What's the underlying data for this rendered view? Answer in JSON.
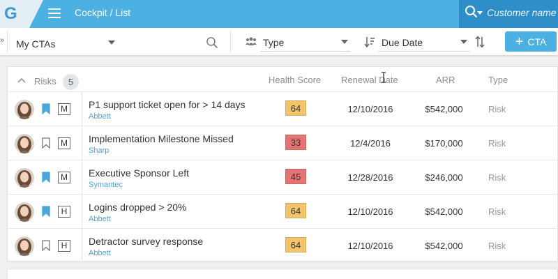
{
  "app": {
    "logo_letter": "G",
    "breadcrumb": "Cockpit / List",
    "search_placeholder": "Customer name",
    "search_icon": "search-icon"
  },
  "toolbar": {
    "view_select": "My CTAs",
    "type_select": "Type",
    "sort_select": "Due Date",
    "cta_button_label": "CTA",
    "cta_button_icon": "plus-icon"
  },
  "section": {
    "title": "Risks",
    "count": "5",
    "columns": [
      "Health Score",
      "Renewal Date",
      "ARR",
      "Type"
    ]
  },
  "rows": [
    {
      "bookmarked": true,
      "priority": "M",
      "title": "P1 support ticket open for > 14 days",
      "company": "Abbett",
      "health": "64",
      "health_color": "#f3c46a",
      "renewal": "12/10/2016",
      "arr": "$542,000",
      "type": "Risk"
    },
    {
      "bookmarked": false,
      "priority": "M",
      "title": "Implementation Milestone Missed",
      "company": "Sharp",
      "health": "33",
      "health_color": "#e57373",
      "renewal": "12/4/2016",
      "arr": "$170,000",
      "type": "Risk"
    },
    {
      "bookmarked": true,
      "priority": "M",
      "title": "Executive Sponsor Left",
      "company": "Symantec",
      "health": "45",
      "health_color": "#e57373",
      "renewal": "12/28/2016",
      "arr": "$246,000",
      "type": "Risk"
    },
    {
      "bookmarked": true,
      "priority": "H",
      "title": "Logins dropped > 20%",
      "company": "Abbett",
      "health": "64",
      "health_color": "#f3c46a",
      "renewal": "12/10/2016",
      "arr": "$542,000",
      "type": "Risk"
    },
    {
      "bookmarked": false,
      "priority": "H",
      "title": "Detractor survey response",
      "company": "Abbett",
      "health": "64",
      "health_color": "#f3c46a",
      "renewal": "12/10/2016",
      "arr": "$542,000",
      "type": "Risk"
    }
  ],
  "colors": {
    "topbar": "#4cb0e3",
    "search_zone": "#2f8ec7",
    "accent": "#4cb0e3",
    "health_warn": "#f3c46a",
    "health_bad": "#e57373"
  }
}
